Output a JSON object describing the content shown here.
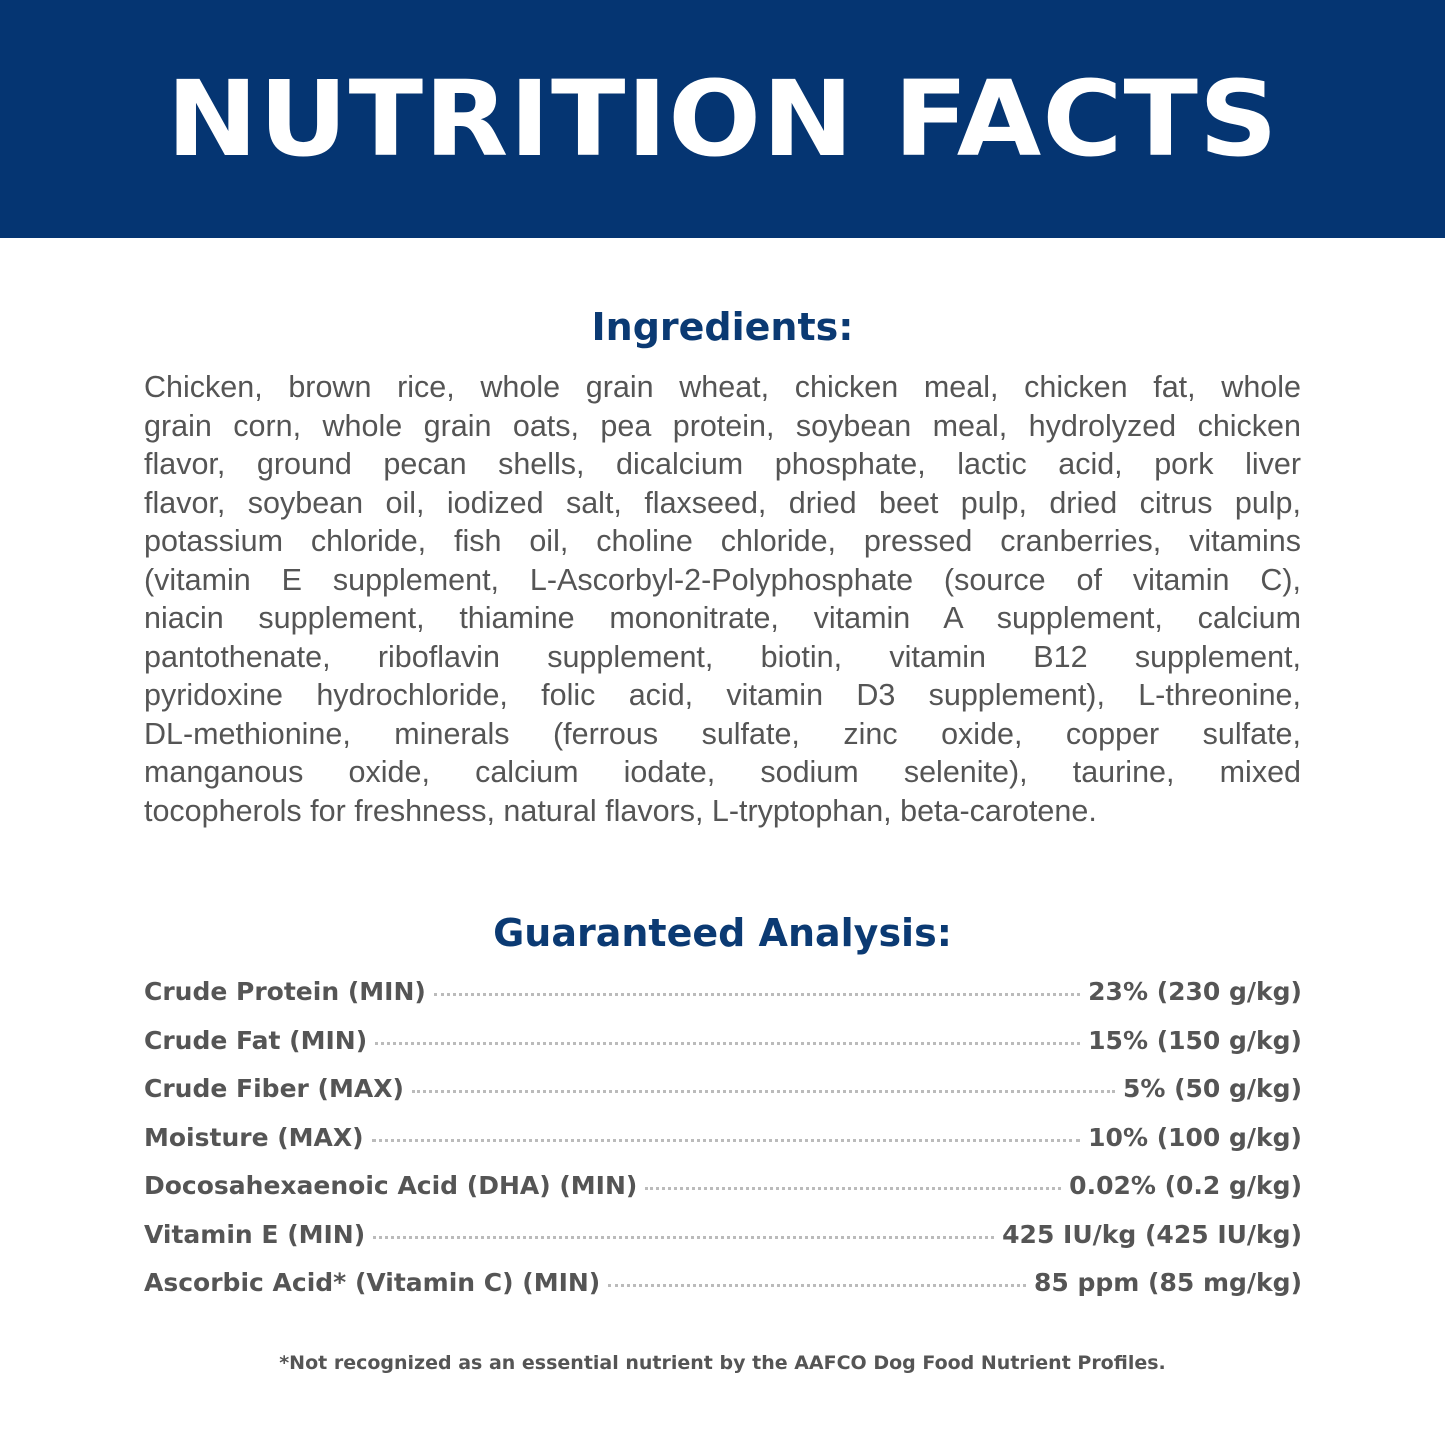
{
  "colors": {
    "banner": "#053572",
    "heading": "#0b3a73",
    "text": "#555555"
  },
  "title": "NUTRITION FACTS",
  "ingredients": {
    "heading": "Ingredients:",
    "lines": [
      "Chicken, brown rice, whole grain wheat, chicken meal, chicken fat, whole",
      "grain corn, whole grain oats, pea protein, soybean meal, hydrolyzed chicken",
      "flavor, ground pecan shells, dicalcium phosphate, lactic acid, pork liver",
      "flavor, soybean oil, iodized salt, flaxseed, dried beet pulp, dried citrus pulp,",
      "potassium chloride, fish oil, choline chloride, pressed cranberries, vitamins",
      "(vitamin E supplement, L-Ascorbyl-2-Polyphosphate (source of vitamin C),",
      "niacin supplement, thiamine mononitrate, vitamin A supplement, calcium",
      "pantothenate, riboflavin supplement, biotin, vitamin B12 supplement,",
      "pyridoxine hydrochloride, folic acid, vitamin D3 supplement), L-threonine,",
      "DL-methionine, minerals (ferrous sulfate, zinc oxide, copper sulfate,",
      "manganous oxide, calcium iodate, sodium selenite), taurine, mixed",
      "tocopherols for freshness, natural flavors, L-tryptophan, beta-carotene."
    ]
  },
  "analysis": {
    "heading": "Guaranteed Analysis:",
    "rows": [
      {
        "label": "Crude Protein (MIN)",
        "value": "23% (230 g/kg)"
      },
      {
        "label": "Crude Fat (MIN)",
        "value": "15% (150 g/kg)"
      },
      {
        "label": "Crude Fiber (MAX)",
        "value": "5% (50 g/kg)"
      },
      {
        "label": "Moisture (MAX)",
        "value": "10% (100 g/kg)"
      },
      {
        "label": "Docosahexaenoic Acid (DHA) (MIN)",
        "value": "0.02% (0.2 g/kg)"
      },
      {
        "label": "Vitamin E (MIN)",
        "value": "425 IU/kg (425 IU/kg)"
      },
      {
        "label": "Ascorbic Acid* (Vitamin C) (MIN)",
        "value": "85 ppm (85 mg/kg)"
      }
    ],
    "footnote": "*Not recognized as an essential nutrient by the AAFCO Dog Food Nutrient Profiles."
  }
}
